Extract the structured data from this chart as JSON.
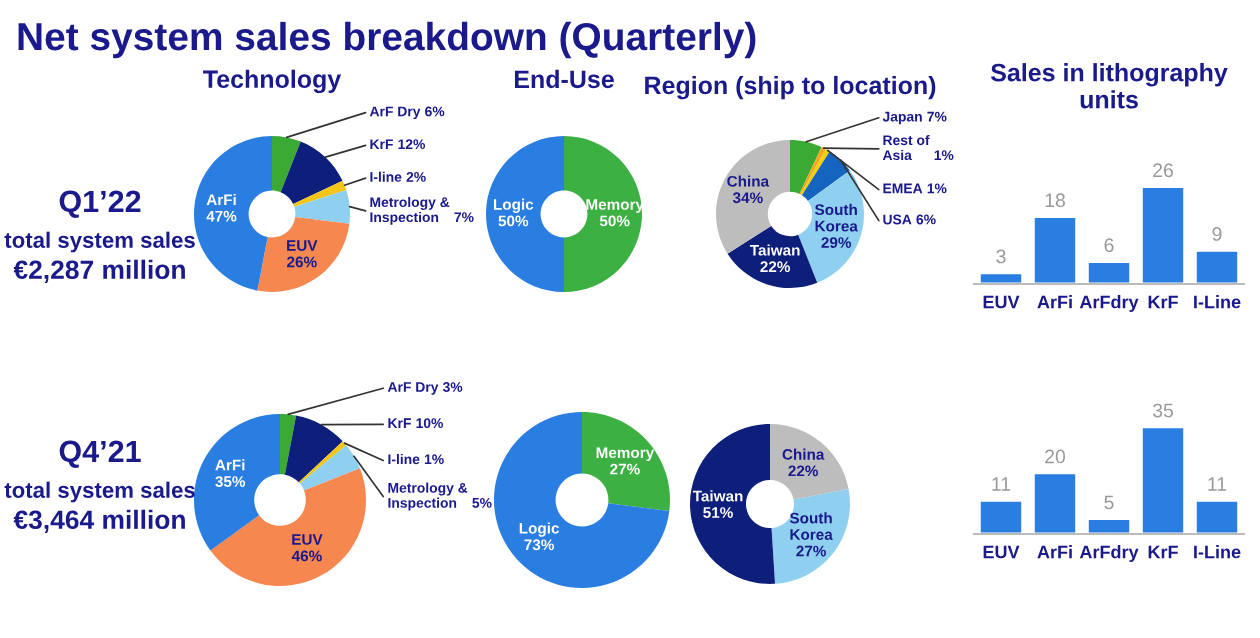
{
  "chart_data": [
    {
      "type": "other",
      "title": "Net system sales breakdown (Quarterly)"
    },
    {
      "type": "other",
      "annotations": [
        "Q1’22",
        "total system sales",
        "€2,287 million"
      ]
    },
    {
      "type": "donut",
      "title": "Technology",
      "categories": [
        "ArF Dry",
        "KrF",
        "I-line",
        "Metrology & Inspection",
        "EUV",
        "ArFi"
      ],
      "values": [
        6,
        12,
        2,
        7,
        26,
        47
      ],
      "value_labels": [
        "6%",
        "12%",
        "2%",
        "7%",
        "26%",
        "47%"
      ],
      "colors": [
        "#3aaa35",
        "#0d1f7a",
        "#f5c518",
        "#8fd0f0",
        "#f5874f",
        "#2a7de1"
      ]
    },
    {
      "type": "donut",
      "title": "End-Use",
      "categories": [
        "Memory",
        "Logic"
      ],
      "values": [
        50,
        50
      ],
      "value_labels": [
        "50%",
        "50%"
      ],
      "colors": [
        "#3cb043",
        "#2a7de1"
      ]
    },
    {
      "type": "donut",
      "title": "Region (ship to location)",
      "categories": [
        "Japan",
        "Rest of Asia",
        "EMEA",
        "USA",
        "South Korea",
        "Taiwan",
        "China"
      ],
      "values": [
        7,
        1,
        1,
        6,
        29,
        22,
        34
      ],
      "value_labels": [
        "7%",
        "1%",
        "1%",
        "6%",
        "29%",
        "22%",
        "34%"
      ],
      "colors": [
        "#3aaa35",
        "#f5a623",
        "#f5d000",
        "#1565c0",
        "#8fd0f0",
        "#0d1f7a",
        "#bdbdbd"
      ]
    },
    {
      "type": "bar",
      "title": "Sales in lithography units",
      "categories": [
        "EUV",
        "ArFi",
        "ArFdry",
        "KrF",
        "I-Line"
      ],
      "values": [
        3,
        18,
        6,
        26,
        9
      ],
      "color": "#2a7de1",
      "data_labels": true
    },
    {
      "type": "other",
      "annotations": [
        "Q4’21",
        "total system sales",
        "€3,464 million"
      ]
    },
    {
      "type": "donut",
      "categories": [
        "ArF Dry",
        "KrF",
        "I-line",
        "Metrology & Inspection",
        "EUV",
        "ArFi"
      ],
      "values": [
        3,
        10,
        1,
        5,
        46,
        35
      ],
      "value_labels": [
        "3%",
        "10%",
        "1%",
        "5%",
        "46%",
        "35%"
      ],
      "colors": [
        "#3aaa35",
        "#0d1f7a",
        "#f5c518",
        "#8fd0f0",
        "#f5874f",
        "#2a7de1"
      ]
    },
    {
      "type": "donut",
      "categories": [
        "Memory",
        "Logic"
      ],
      "values": [
        27,
        73
      ],
      "value_labels": [
        "27%",
        "73%"
      ],
      "colors": [
        "#3cb043",
        "#2a7de1"
      ]
    },
    {
      "type": "donut",
      "categories": [
        "China",
        "South Korea",
        "Taiwan"
      ],
      "values": [
        22,
        27,
        51
      ],
      "value_labels": [
        "22%",
        "27%",
        "51%"
      ],
      "colors": [
        "#bdbdbd",
        "#8fd0f0",
        "#0d1f7a"
      ]
    },
    {
      "type": "bar",
      "categories": [
        "EUV",
        "ArFi",
        "ArFdry",
        "KrF",
        "I-Line"
      ],
      "values": [
        11,
        20,
        5,
        35,
        11
      ],
      "color": "#2a7de1",
      "data_labels": true
    }
  ]
}
